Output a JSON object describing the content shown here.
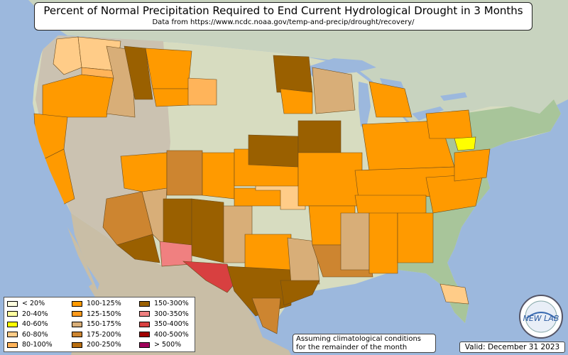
{
  "title": "Percent of Normal Precipitation Required to End Current Hydrological Drought in 3 Months",
  "subtitle": "Data from https://www.ncdc.noaa.gov/temp-and-precip/drought/recovery/",
  "legend": [
    {
      "label": "< 20%",
      "color": "#ffffe0"
    },
    {
      "label": "20-40%",
      "color": "#ffffa0"
    },
    {
      "label": "40-60%",
      "color": "#ffff00"
    },
    {
      "label": "60-80%",
      "color": "#ffcc88"
    },
    {
      "label": "80-100%",
      "color": "#ffb45a"
    },
    {
      "label": "100-125%",
      "color": "#ff9a00"
    },
    {
      "label": "125-150%",
      "color": "#ff9a1c"
    },
    {
      "label": "150-175%",
      "color": "#d8ae78"
    },
    {
      "label": "175-200%",
      "color": "#cd8530"
    },
    {
      "label": "200-250%",
      "color": "#b86e10"
    },
    {
      "label": "150-300%",
      "color": "#9a6000"
    },
    {
      "label": "300-350%",
      "color": "#f08080"
    },
    {
      "label": "350-400%",
      "color": "#d84040"
    },
    {
      "label": "400-500%",
      "color": "#a00000"
    },
    {
      "label": "> 500%",
      "color": "#a0005a"
    }
  ],
  "note": [
    "Assuming climatological conditions",
    "for the remainder of the month"
  ],
  "valid": "Valid: December 31 2023",
  "logo_text": "NEW LAB",
  "colors": {
    "ocean": "#9cb8dd",
    "land_west": "#c9c3b3",
    "land_plains": "#dde3c6",
    "land_east": "#a9c79a",
    "mexico": "#c9bea6",
    "canada": "#c8d3bf"
  }
}
